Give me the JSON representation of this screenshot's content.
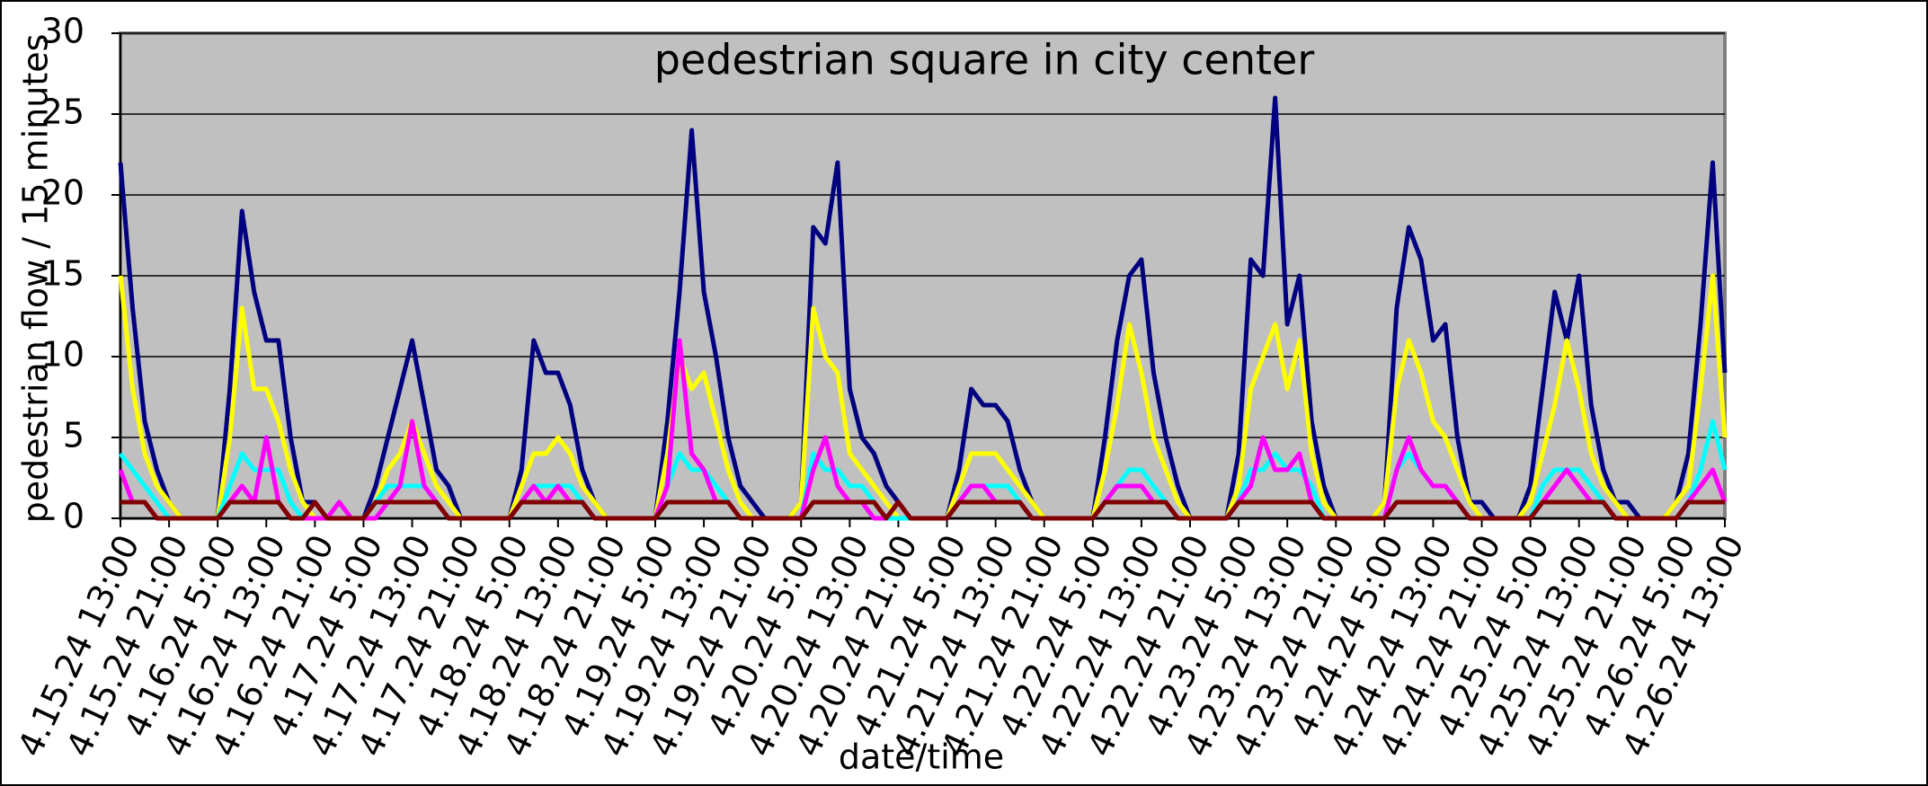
{
  "chart_data": {
    "type": "line",
    "title": "pedestrian square in city center",
    "x_label": "date/time",
    "y_label": "pedestrian flow / 15 minutes",
    "categories": [
      "4.15.24 13:00",
      null,
      null,
      null,
      "4.15.24 21:00",
      null,
      null,
      null,
      "4.16.24 5:00",
      null,
      null,
      null,
      "4.16.24 13:00",
      null,
      null,
      null,
      "4.16.24 21:00",
      null,
      null,
      null,
      "4.17.24 5:00",
      null,
      null,
      null,
      "4.17.24 13:00",
      null,
      null,
      null,
      "4.17.24 21:00",
      null,
      null,
      null,
      "4.18.24 5:00",
      null,
      null,
      null,
      "4.18.24 13:00",
      null,
      null,
      null,
      "4.18.24 21:00",
      null,
      null,
      null,
      "4.19.24 5:00",
      null,
      null,
      null,
      "4.19.24 13:00",
      null,
      null,
      null,
      "4.19.24 21:00",
      null,
      null,
      null,
      "4.20.24 5:00",
      null,
      null,
      null,
      "4.20.24 13:00",
      null,
      null,
      null,
      "4.20.24 21:00",
      null,
      null,
      null,
      "4.21.24 5:00",
      null,
      null,
      null,
      "4.21.24 13:00",
      null,
      null,
      null,
      "4.21.24 21:00",
      null,
      null,
      null,
      "4.22.24 5:00",
      null,
      null,
      null,
      "4.22.24 13:00",
      null,
      null,
      null,
      "4.22.24 21:00",
      null,
      null,
      null,
      "4.23.24 5:00",
      null,
      null,
      null,
      "4.23.24 13:00",
      null,
      null,
      null,
      "4.23.24 21:00",
      null,
      null,
      null,
      "4.24.24 5:00",
      null,
      null,
      null,
      "4.24.24 13:00",
      null,
      null,
      null,
      "4.24.24 21:00",
      null,
      null,
      null,
      "4.25.24 5:00",
      null,
      null,
      null,
      "4.25.24 13:00",
      null,
      null,
      null,
      "4.25.24 21:00",
      null,
      null,
      null,
      "4.26.24 5:00",
      null,
      null,
      null,
      "4.26.24 13:00"
    ],
    "series": [
      {
        "color": "#000080",
        "values": [
          22,
          13,
          6,
          3,
          1,
          0,
          0,
          0,
          0,
          8,
          19,
          14,
          11,
          11,
          5,
          1,
          1,
          0,
          0,
          0,
          0,
          2,
          5,
          8,
          11,
          7,
          3,
          2,
          0,
          0,
          0,
          0,
          0,
          3,
          11,
          9,
          9,
          7,
          3,
          1,
          0,
          0,
          0,
          0,
          0,
          6,
          14,
          24,
          14,
          10,
          5,
          2,
          1,
          0,
          0,
          0,
          1,
          18,
          17,
          22,
          8,
          5,
          4,
          2,
          1,
          0,
          0,
          0,
          0,
          3,
          8,
          7,
          7,
          6,
          3,
          1,
          0,
          0,
          0,
          0,
          0,
          5,
          11,
          15,
          16,
          9,
          5,
          2,
          0,
          0,
          0,
          0,
          4,
          16,
          15,
          26,
          12,
          15,
          6,
          2,
          0,
          0,
          0,
          0,
          1,
          13,
          18,
          16,
          11,
          12,
          5,
          1,
          1,
          0,
          0,
          0,
          2,
          8,
          14,
          11,
          15,
          7,
          3,
          1,
          1,
          0,
          0,
          0,
          1,
          4,
          12,
          22,
          9
        ]
      },
      {
        "color": "#ffff00",
        "values": [
          15,
          8,
          4,
          2,
          1,
          0,
          0,
          0,
          0,
          5,
          13,
          8,
          8,
          6,
          3,
          1,
          0,
          0,
          0,
          0,
          0,
          1,
          3,
          4,
          6,
          4,
          2,
          1,
          0,
          0,
          0,
          0,
          0,
          2,
          4,
          4,
          5,
          4,
          2,
          1,
          0,
          0,
          0,
          0,
          0,
          4,
          10,
          8,
          9,
          6,
          3,
          1,
          0,
          0,
          0,
          0,
          1,
          13,
          10,
          9,
          4,
          3,
          2,
          1,
          0,
          0,
          0,
          0,
          0,
          2,
          4,
          4,
          4,
          3,
          2,
          1,
          0,
          0,
          0,
          0,
          0,
          3,
          7,
          12,
          9,
          5,
          3,
          1,
          0,
          0,
          0,
          0,
          2,
          8,
          10,
          12,
          8,
          11,
          4,
          1,
          0,
          0,
          0,
          0,
          1,
          8,
          11,
          9,
          6,
          5,
          3,
          1,
          0,
          0,
          0,
          0,
          1,
          4,
          7,
          11,
          8,
          4,
          2,
          1,
          0,
          0,
          0,
          0,
          1,
          2,
          8,
          15,
          5
        ]
      },
      {
        "color": "#00ffff",
        "values": [
          4,
          3,
          2,
          1,
          0,
          0,
          0,
          0,
          0,
          2,
          4,
          3,
          3,
          3,
          1,
          0,
          0,
          0,
          0,
          0,
          0,
          1,
          2,
          2,
          2,
          2,
          1,
          0,
          0,
          0,
          0,
          0,
          0,
          1,
          2,
          2,
          2,
          2,
          1,
          0,
          0,
          0,
          0,
          0,
          0,
          2,
          4,
          3,
          3,
          2,
          1,
          0,
          0,
          0,
          0,
          0,
          0,
          4,
          3,
          3,
          2,
          2,
          1,
          0,
          0,
          0,
          0,
          0,
          0,
          1,
          2,
          2,
          2,
          2,
          1,
          0,
          0,
          0,
          0,
          0,
          0,
          1,
          2,
          3,
          3,
          2,
          1,
          0,
          0,
          0,
          0,
          0,
          1,
          3,
          3,
          4,
          3,
          3,
          2,
          0,
          0,
          0,
          0,
          0,
          0,
          3,
          4,
          3,
          2,
          2,
          1,
          0,
          0,
          0,
          0,
          0,
          0,
          2,
          3,
          3,
          3,
          2,
          1,
          0,
          0,
          0,
          0,
          0,
          0,
          1,
          3,
          6,
          3
        ]
      },
      {
        "color": "#ff00ff",
        "values": [
          3,
          1,
          1,
          0,
          0,
          0,
          0,
          0,
          0,
          1,
          2,
          1,
          5,
          1,
          0,
          0,
          0,
          0,
          1,
          0,
          0,
          0,
          1,
          2,
          6,
          2,
          1,
          0,
          0,
          0,
          0,
          0,
          0,
          1,
          2,
          1,
          2,
          1,
          1,
          0,
          0,
          0,
          0,
          0,
          0,
          2,
          11,
          4,
          3,
          1,
          1,
          0,
          0,
          0,
          0,
          0,
          0,
          3,
          5,
          2,
          1,
          1,
          0,
          0,
          1,
          0,
          0,
          0,
          0,
          1,
          2,
          2,
          1,
          1,
          1,
          0,
          0,
          0,
          0,
          0,
          0,
          1,
          2,
          2,
          2,
          1,
          1,
          0,
          0,
          0,
          0,
          0,
          1,
          2,
          5,
          3,
          3,
          4,
          1,
          0,
          0,
          0,
          0,
          0,
          0,
          3,
          5,
          3,
          2,
          2,
          1,
          0,
          0,
          0,
          0,
          0,
          0,
          1,
          2,
          3,
          2,
          1,
          1,
          0,
          0,
          0,
          0,
          0,
          0,
          1,
          2,
          3,
          1
        ]
      },
      {
        "color": "#800000",
        "values": [
          1,
          1,
          1,
          0,
          0,
          0,
          0,
          0,
          0,
          1,
          1,
          1,
          1,
          1,
          0,
          0,
          1,
          0,
          0,
          0,
          0,
          1,
          1,
          1,
          1,
          1,
          1,
          0,
          0,
          0,
          0,
          0,
          0,
          1,
          1,
          1,
          1,
          1,
          1,
          0,
          0,
          0,
          0,
          0,
          0,
          1,
          1,
          1,
          1,
          1,
          1,
          0,
          0,
          0,
          0,
          0,
          0,
          1,
          1,
          1,
          1,
          1,
          1,
          0,
          1,
          0,
          0,
          0,
          0,
          1,
          1,
          1,
          1,
          1,
          1,
          0,
          0,
          0,
          0,
          0,
          0,
          1,
          1,
          1,
          1,
          1,
          1,
          0,
          0,
          0,
          0,
          0,
          1,
          1,
          1,
          1,
          1,
          1,
          1,
          0,
          0,
          0,
          0,
          0,
          0,
          1,
          1,
          1,
          1,
          1,
          1,
          0,
          0,
          0,
          0,
          0,
          0,
          1,
          1,
          1,
          1,
          1,
          1,
          0,
          0,
          0,
          0,
          0,
          0,
          1,
          1,
          1,
          1
        ]
      }
    ],
    "ylim": [
      0,
      30
    ],
    "yticks": [
      0,
      5,
      10,
      15,
      20,
      25,
      30
    ],
    "grid": true
  }
}
